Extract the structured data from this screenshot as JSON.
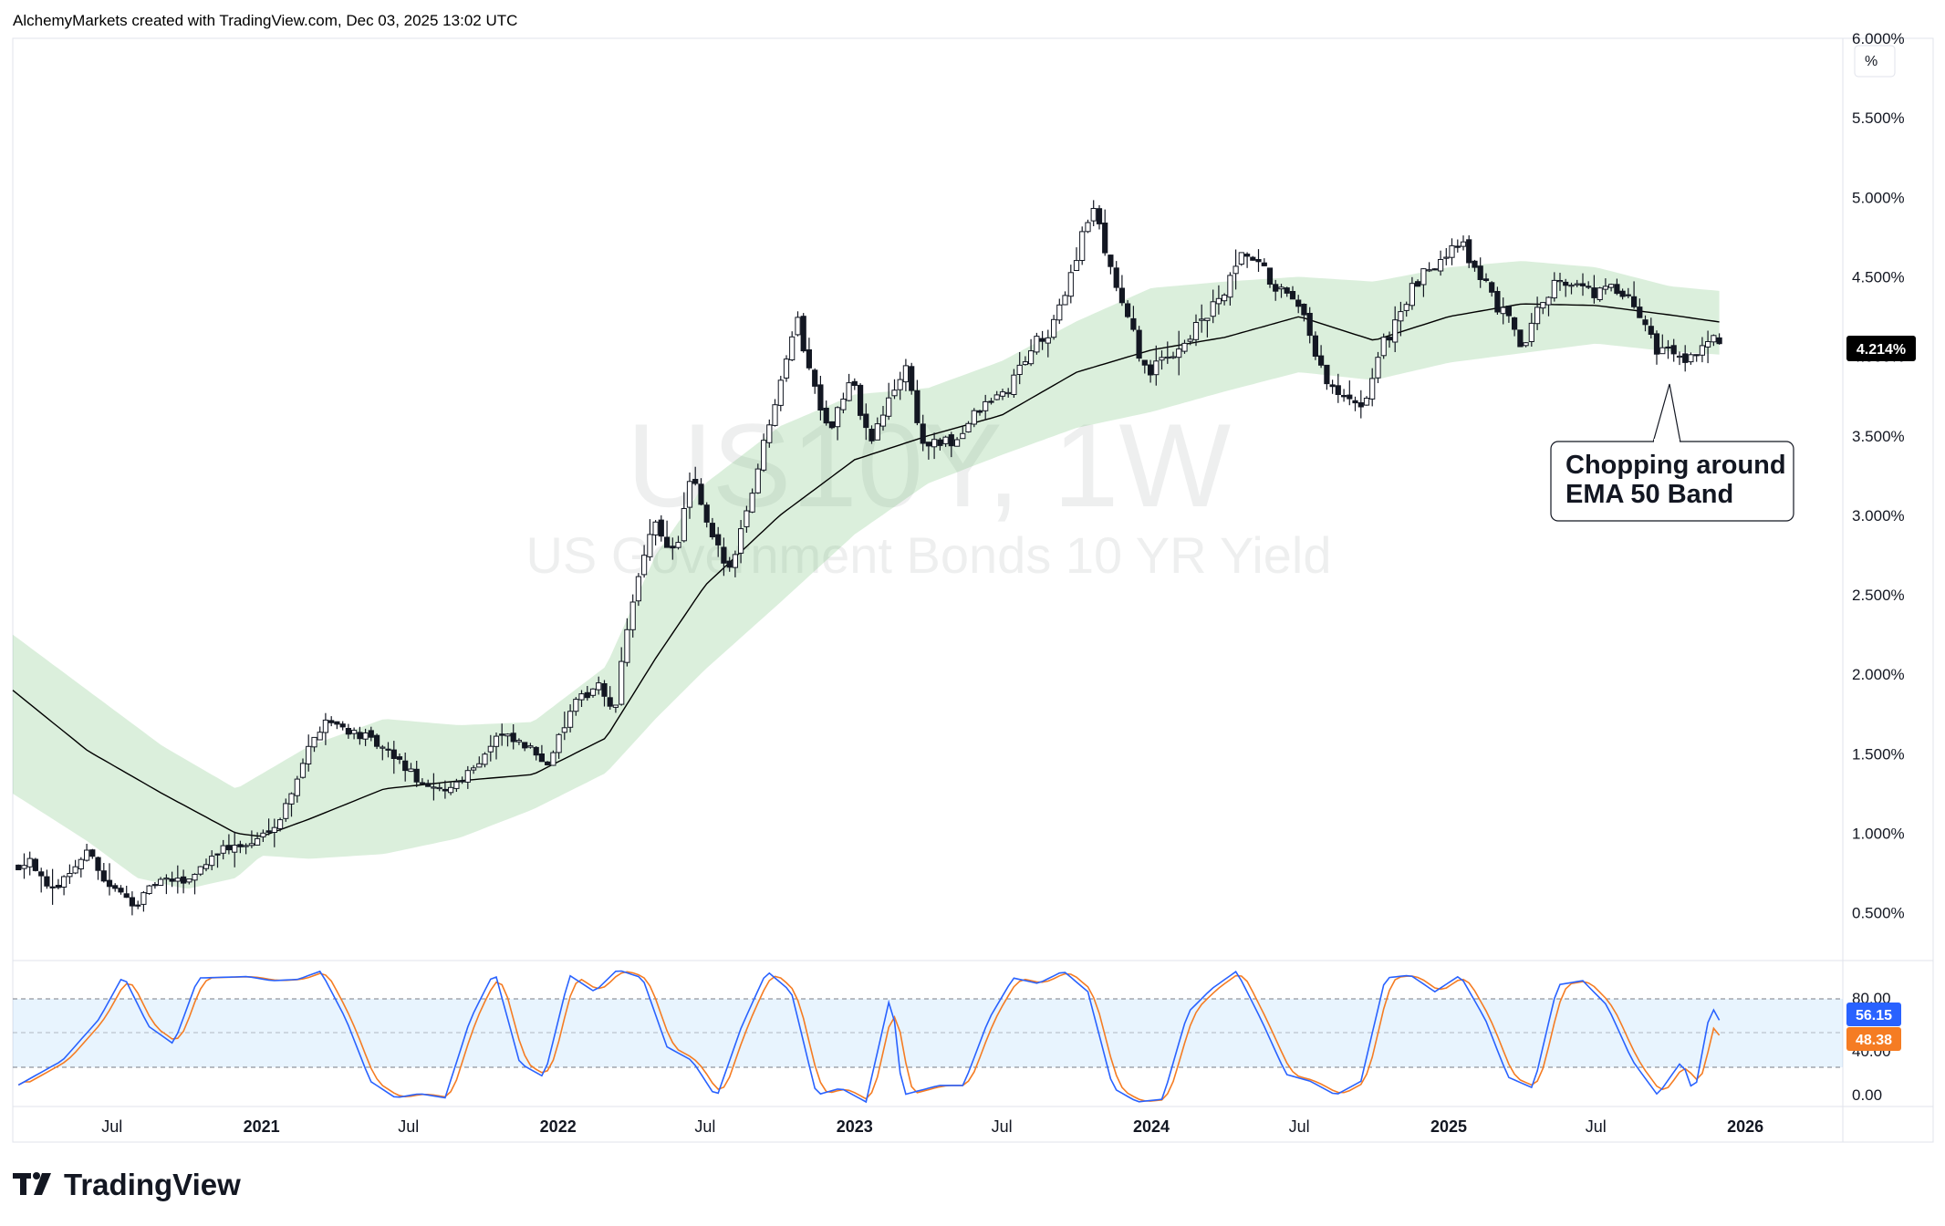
{
  "header": {
    "credit": "AlchemyMarkets created with TradingView.com, Dec 03, 2025 13:02 UTC"
  },
  "watermark": {
    "symbol": "US10Y, 1W",
    "description": "US Government Bonds 10 YR Yield"
  },
  "price_scale": {
    "unit_button": "%",
    "ticks": [
      "6.000%",
      "5.500%",
      "5.000%",
      "4.500%",
      "4.000%",
      "3.500%",
      "3.000%",
      "2.500%",
      "2.000%",
      "1.500%",
      "1.000%",
      "0.500%"
    ],
    "last_value_tag": "4.214%"
  },
  "oscillator_scale": {
    "ticks": [
      "80.00",
      "40.00",
      "0.00"
    ],
    "k_tag": "56.15",
    "d_tag": "48.38"
  },
  "time_axis": {
    "labels": [
      {
        "text": "Jul",
        "bold": false
      },
      {
        "text": "2021",
        "bold": true
      },
      {
        "text": "Jul",
        "bold": false
      },
      {
        "text": "2022",
        "bold": true
      },
      {
        "text": "Jul",
        "bold": false
      },
      {
        "text": "2023",
        "bold": true
      },
      {
        "text": "Jul",
        "bold": false
      },
      {
        "text": "2024",
        "bold": true
      },
      {
        "text": "Jul",
        "bold": false
      },
      {
        "text": "2025",
        "bold": true
      },
      {
        "text": "Jul",
        "bold": false
      },
      {
        "text": "2026",
        "bold": true
      }
    ]
  },
  "annotation": {
    "line1": "Chopping around",
    "line2": "EMA 50 Band"
  },
  "brand": {
    "name": "TradingView"
  },
  "colors": {
    "candle": "#131722",
    "ema": "#000000",
    "band": "#4caf50",
    "stoch_k": "#2962ff",
    "stoch_d": "#f57c23",
    "osc_bg": "#2196f3"
  },
  "chart_data": {
    "type": "candlestick",
    "timeframe": "1W",
    "x_range": [
      "2020-03-01",
      "2026-05-01"
    ],
    "y_range": [
      0.2,
      6.0
    ],
    "y_unit": "%",
    "close_anchors": [
      [
        "2020-03-08",
        0.79
      ],
      [
        "2020-03-22",
        0.85
      ],
      [
        "2020-04-15",
        0.62
      ],
      [
        "2020-06-05",
        0.9
      ],
      [
        "2020-06-20",
        0.7
      ],
      [
        "2020-07-30",
        0.55
      ],
      [
        "2020-08-25",
        0.7
      ],
      [
        "2020-10-01",
        0.7
      ],
      [
        "2020-11-10",
        0.9
      ],
      [
        "2020-12-20",
        0.93
      ],
      [
        "2021-01-25",
        1.1
      ],
      [
        "2021-02-25",
        1.5
      ],
      [
        "2021-03-20",
        1.72
      ],
      [
        "2021-05-10",
        1.6
      ],
      [
        "2021-06-20",
        1.45
      ],
      [
        "2021-07-25",
        1.27
      ],
      [
        "2021-08-20",
        1.28
      ],
      [
        "2021-09-25",
        1.45
      ],
      [
        "2021-10-20",
        1.62
      ],
      [
        "2021-11-20",
        1.55
      ],
      [
        "2021-12-20",
        1.45
      ],
      [
        "2022-01-20",
        1.8
      ],
      [
        "2022-02-20",
        1.95
      ],
      [
        "2022-03-10",
        1.72
      ],
      [
        "2022-04-01",
        2.45
      ],
      [
        "2022-04-30",
        2.95
      ],
      [
        "2022-05-25",
        2.75
      ],
      [
        "2022-06-14",
        3.25
      ],
      [
        "2022-07-05",
        2.9
      ],
      [
        "2022-07-30",
        2.65
      ],
      [
        "2022-08-30",
        3.2
      ],
      [
        "2022-09-28",
        3.8
      ],
      [
        "2022-10-21",
        4.25
      ],
      [
        "2022-11-10",
        3.85
      ],
      [
        "2022-12-01",
        3.55
      ],
      [
        "2022-12-28",
        3.85
      ],
      [
        "2023-01-20",
        3.45
      ],
      [
        "2023-03-05",
        3.95
      ],
      [
        "2023-03-25",
        3.45
      ],
      [
        "2023-05-01",
        3.45
      ],
      [
        "2023-06-01",
        3.65
      ],
      [
        "2023-07-10",
        3.8
      ],
      [
        "2023-08-05",
        4.05
      ],
      [
        "2023-09-01",
        4.15
      ],
      [
        "2023-09-25",
        4.55
      ],
      [
        "2023-10-20",
        4.95
      ],
      [
        "2023-11-10",
        4.6
      ],
      [
        "2023-12-01",
        4.25
      ],
      [
        "2023-12-28",
        3.88
      ],
      [
        "2024-02-01",
        4.05
      ],
      [
        "2024-03-01",
        4.2
      ],
      [
        "2024-04-01",
        4.4
      ],
      [
        "2024-04-25",
        4.65
      ],
      [
        "2024-06-01",
        4.45
      ],
      [
        "2024-07-05",
        4.25
      ],
      [
        "2024-08-05",
        3.8
      ],
      [
        "2024-09-15",
        3.65
      ],
      [
        "2024-10-10",
        4.05
      ],
      [
        "2024-11-15",
        4.4
      ],
      [
        "2025-01-10",
        4.75
      ],
      [
        "2025-02-10",
        4.5
      ],
      [
        "2025-03-10",
        4.25
      ],
      [
        "2025-04-06",
        4.05
      ],
      [
        "2025-04-20",
        4.35
      ],
      [
        "2025-05-20",
        4.5
      ],
      [
        "2025-06-20",
        4.4
      ],
      [
        "2025-07-20",
        4.42
      ],
      [
        "2025-08-20",
        4.3
      ],
      [
        "2025-09-15",
        4.05
      ],
      [
        "2025-10-20",
        4.0
      ],
      [
        "2025-11-20",
        4.1
      ],
      [
        "2025-12-03",
        4.08
      ]
    ],
    "ema50_anchors": [
      [
        "2020-03-01",
        1.9
      ],
      [
        "2020-06-01",
        1.52
      ],
      [
        "2020-09-01",
        1.25
      ],
      [
        "2020-12-01",
        1.0
      ],
      [
        "2021-01-01",
        0.98
      ],
      [
        "2021-03-01",
        1.09
      ],
      [
        "2021-06-01",
        1.28
      ],
      [
        "2021-09-01",
        1.33
      ],
      [
        "2021-12-01",
        1.37
      ],
      [
        "2022-03-01",
        1.6
      ],
      [
        "2022-05-01",
        2.1
      ],
      [
        "2022-07-01",
        2.56
      ],
      [
        "2022-10-01",
        3.0
      ],
      [
        "2023-01-01",
        3.35
      ],
      [
        "2023-04-01",
        3.5
      ],
      [
        "2023-07-01",
        3.63
      ],
      [
        "2023-10-01",
        3.9
      ],
      [
        "2024-01-01",
        4.04
      ],
      [
        "2024-04-01",
        4.12
      ],
      [
        "2024-07-01",
        4.25
      ],
      [
        "2024-10-01",
        4.1
      ],
      [
        "2025-01-01",
        4.25
      ],
      [
        "2025-04-01",
        4.33
      ],
      [
        "2025-07-01",
        4.32
      ],
      [
        "2025-10-01",
        4.26
      ],
      [
        "2025-12-03",
        4.214
      ]
    ],
    "band_upper_anchors": [
      [
        "2020-03-01",
        2.25
      ],
      [
        "2020-06-01",
        1.9
      ],
      [
        "2020-09-01",
        1.55
      ],
      [
        "2020-12-01",
        1.28
      ],
      [
        "2021-03-01",
        1.55
      ],
      [
        "2021-06-01",
        1.72
      ],
      [
        "2021-09-01",
        1.68
      ],
      [
        "2021-12-01",
        1.7
      ],
      [
        "2022-03-01",
        2.05
      ],
      [
        "2022-05-01",
        2.75
      ],
      [
        "2022-07-01",
        3.2
      ],
      [
        "2022-10-01",
        3.56
      ],
      [
        "2023-01-01",
        3.76
      ],
      [
        "2023-04-01",
        3.8
      ],
      [
        "2023-07-01",
        3.97
      ],
      [
        "2023-10-01",
        4.22
      ],
      [
        "2024-01-01",
        4.43
      ],
      [
        "2024-04-01",
        4.47
      ],
      [
        "2024-07-01",
        4.5
      ],
      [
        "2024-10-01",
        4.47
      ],
      [
        "2025-01-01",
        4.56
      ],
      [
        "2025-04-01",
        4.6
      ],
      [
        "2025-07-01",
        4.56
      ],
      [
        "2025-10-01",
        4.44
      ],
      [
        "2025-12-03",
        4.41
      ]
    ],
    "band_lower_anchors": [
      [
        "2020-03-01",
        1.25
      ],
      [
        "2020-06-01",
        0.95
      ],
      [
        "2020-08-01",
        0.72
      ],
      [
        "2020-10-01",
        0.65
      ],
      [
        "2020-12-01",
        0.72
      ],
      [
        "2021-01-01",
        0.86
      ],
      [
        "2021-03-01",
        0.84
      ],
      [
        "2021-06-01",
        0.87
      ],
      [
        "2021-09-01",
        0.97
      ],
      [
        "2021-12-01",
        1.15
      ],
      [
        "2022-03-01",
        1.38
      ],
      [
        "2022-05-01",
        1.72
      ],
      [
        "2022-07-01",
        2.03
      ],
      [
        "2022-10-01",
        2.45
      ],
      [
        "2023-01-01",
        2.88
      ],
      [
        "2023-04-01",
        3.2
      ],
      [
        "2023-07-01",
        3.38
      ],
      [
        "2023-10-01",
        3.55
      ],
      [
        "2024-01-01",
        3.65
      ],
      [
        "2024-04-01",
        3.78
      ],
      [
        "2024-07-01",
        3.9
      ],
      [
        "2024-10-01",
        3.85
      ],
      [
        "2025-01-01",
        3.96
      ],
      [
        "2025-04-01",
        4.02
      ],
      [
        "2025-07-01",
        4.08
      ],
      [
        "2025-10-01",
        4.03
      ],
      [
        "2025-12-03",
        4.01
      ]
    ],
    "oscillator": {
      "type": "stochastic",
      "range": [
        0,
        100
      ],
      "upper_band": 80,
      "lower_band": 20,
      "mid_line": 50,
      "last_k": 56.15,
      "last_d": 48.38,
      "k_anchors": [
        [
          "2020-03-01",
          10
        ],
        [
          "2020-05-01",
          30
        ],
        [
          "2020-06-15",
          60
        ],
        [
          "2020-07-15",
          92
        ],
        [
          "2020-08-15",
          55
        ],
        [
          "2020-09-15",
          42
        ],
        [
          "2020-10-15",
          90
        ],
        [
          "2020-12-15",
          91
        ],
        [
          "2021-01-15",
          88
        ],
        [
          "2021-02-15",
          89
        ],
        [
          "2021-03-15",
          95
        ],
        [
          "2021-04-15",
          60
        ],
        [
          "2021-05-15",
          15
        ],
        [
          "2021-06-15",
          3
        ],
        [
          "2021-07-15",
          6
        ],
        [
          "2021-08-15",
          3
        ],
        [
          "2021-09-15",
          60
        ],
        [
          "2021-10-15",
          95
        ],
        [
          "2021-11-15",
          28
        ],
        [
          "2021-12-15",
          18
        ],
        [
          "2022-01-15",
          92
        ],
        [
          "2022-02-15",
          80
        ],
        [
          "2022-03-15",
          96
        ],
        [
          "2022-04-15",
          90
        ],
        [
          "2022-05-15",
          40
        ],
        [
          "2022-06-15",
          30
        ],
        [
          "2022-07-15",
          3
        ],
        [
          "2022-08-15",
          55
        ],
        [
          "2022-09-15",
          95
        ],
        [
          "2022-10-15",
          80
        ],
        [
          "2022-11-15",
          5
        ],
        [
          "2022-12-15",
          10
        ],
        [
          "2023-01-15",
          0
        ],
        [
          "2023-02-15",
          80
        ],
        [
          "2023-03-01",
          5
        ],
        [
          "2023-04-15",
          12
        ],
        [
          "2023-05-15",
          12
        ],
        [
          "2023-06-15",
          60
        ],
        [
          "2023-07-15",
          90
        ],
        [
          "2023-08-15",
          86
        ],
        [
          "2023-09-15",
          95
        ],
        [
          "2023-10-15",
          80
        ],
        [
          "2023-11-15",
          10
        ],
        [
          "2023-12-15",
          0
        ],
        [
          "2024-01-15",
          2
        ],
        [
          "2024-02-15",
          65
        ],
        [
          "2024-03-15",
          82
        ],
        [
          "2024-04-15",
          95
        ],
        [
          "2024-05-15",
          60
        ],
        [
          "2024-06-15",
          20
        ],
        [
          "2024-07-15",
          15
        ],
        [
          "2024-08-15",
          5
        ],
        [
          "2024-09-15",
          15
        ],
        [
          "2024-10-15",
          90
        ],
        [
          "2024-11-15",
          92
        ],
        [
          "2024-12-15",
          80
        ],
        [
          "2025-01-15",
          92
        ],
        [
          "2025-02-15",
          60
        ],
        [
          "2025-03-15",
          18
        ],
        [
          "2025-04-15",
          10
        ],
        [
          "2025-05-15",
          85
        ],
        [
          "2025-06-15",
          88
        ],
        [
          "2025-07-15",
          70
        ],
        [
          "2025-08-15",
          30
        ],
        [
          "2025-09-15",
          5
        ],
        [
          "2025-10-15",
          30
        ],
        [
          "2025-10-30",
          5
        ],
        [
          "2025-11-20",
          70
        ],
        [
          "2025-12-03",
          56.15
        ]
      ]
    }
  }
}
